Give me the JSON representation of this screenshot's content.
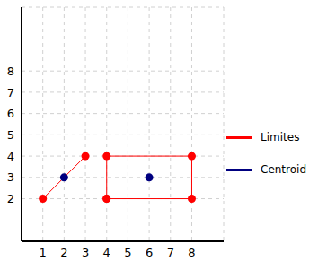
{
  "chart_data": {
    "type": "scatter",
    "xlim": [
      0,
      9.5
    ],
    "ylim": [
      0,
      11
    ],
    "xticks": [
      1,
      2,
      3,
      4,
      5,
      6,
      7,
      8
    ],
    "yticks": [
      2,
      3,
      4,
      5,
      6,
      7,
      8
    ],
    "grid": true,
    "legend": "right",
    "series": [
      {
        "name": "Limites",
        "type": "line",
        "color": "#ff0000",
        "marker": "circle",
        "x": [
          1,
          3,
          null,
          4,
          8,
          8,
          4,
          4
        ],
        "values": [
          2,
          4,
          null,
          2,
          2,
          4,
          4,
          2
        ]
      },
      {
        "name": "Centroid",
        "type": "scatter",
        "color": "#000080",
        "marker": "circle",
        "x": [
          2,
          6
        ],
        "values": [
          3,
          3
        ]
      }
    ]
  }
}
